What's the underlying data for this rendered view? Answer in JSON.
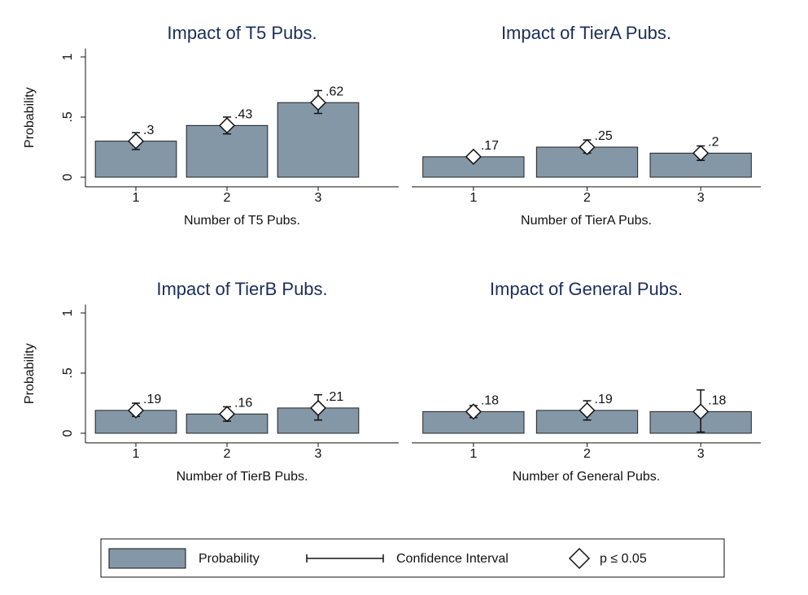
{
  "chart_data": [
    {
      "type": "bar",
      "title": "Impact of T5 Pubs.",
      "x_label": "Number of T5 Pubs.",
      "y_label": "Probability",
      "categories": [
        "1",
        "2",
        "3"
      ],
      "values": [
        0.3,
        0.43,
        0.62
      ],
      "value_labels": [
        ".3",
        ".43",
        ".62"
      ],
      "ci": [
        [
          0.23,
          0.37
        ],
        [
          0.36,
          0.5
        ],
        [
          0.53,
          0.72
        ]
      ],
      "ylim": [
        -0.08,
        1.07
      ],
      "yticks": [
        0,
        {
          "value": 0.5,
          "label": ".5"
        },
        1
      ],
      "color": "#8497a6"
    },
    {
      "type": "bar",
      "title": "Impact of TierA Pubs.",
      "x_label": "Number of TierA Pubs.",
      "categories": [
        "1",
        "2",
        "3"
      ],
      "values": [
        0.17,
        0.25,
        0.2
      ],
      "value_labels": [
        ".17",
        ".25",
        ".2"
      ],
      "ci": [
        [
          0.15,
          0.19
        ],
        [
          0.2,
          0.31
        ],
        [
          0.14,
          0.26
        ]
      ],
      "ylim": [
        -0.08,
        1.07
      ],
      "color": "#8497a6"
    },
    {
      "type": "bar",
      "title": "Impact of TierB Pubs.",
      "x_label": "Number of TierB Pubs.",
      "y_label": "Probability",
      "categories": [
        "1",
        "2",
        "3"
      ],
      "values": [
        0.19,
        0.16,
        0.21
      ],
      "value_labels": [
        ".19",
        ".16",
        ".21"
      ],
      "ci": [
        [
          0.14,
          0.25
        ],
        [
          0.1,
          0.22
        ],
        [
          0.11,
          0.32
        ]
      ],
      "ylim": [
        -0.08,
        1.07
      ],
      "yticks": [
        0,
        {
          "value": 0.5,
          "label": ".5"
        },
        1
      ],
      "color": "#8497a6"
    },
    {
      "type": "bar",
      "title": "Impact of General Pubs.",
      "x_label": "Number of General Pubs.",
      "categories": [
        "1",
        "2",
        "3"
      ],
      "values": [
        0.18,
        0.19,
        0.18
      ],
      "value_labels": [
        ".18",
        ".19",
        ".18"
      ],
      "ci": [
        [
          0.13,
          0.23
        ],
        [
          0.11,
          0.27
        ],
        [
          0.01,
          0.36
        ]
      ],
      "ylim": [
        -0.08,
        1.07
      ],
      "color": "#8497a6"
    }
  ],
  "legend": {
    "items": [
      "Probability",
      "Confidence Interval",
      "p  ≤ 0.05"
    ]
  }
}
